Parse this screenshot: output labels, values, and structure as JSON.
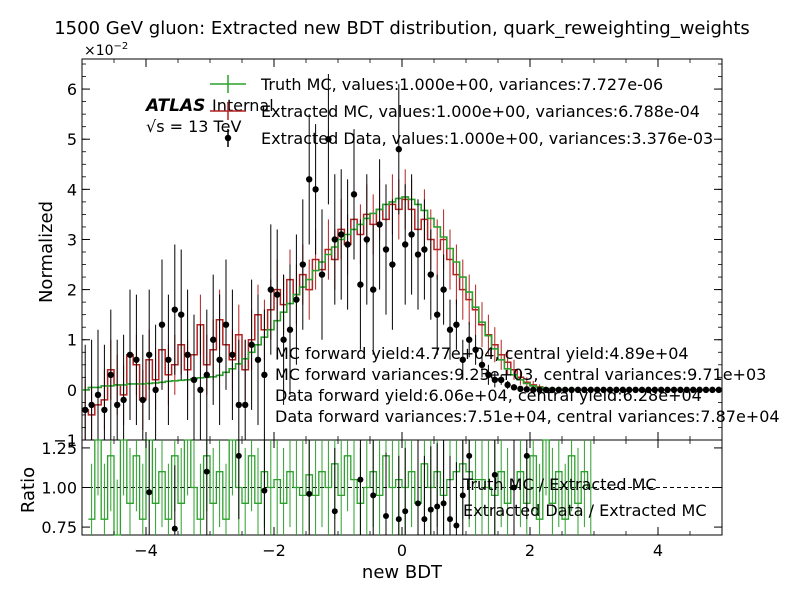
{
  "chart_data": {
    "type": "line",
    "title": "1500 GeV gluon: Extracted new BDT distribution, quark_reweighting_weights",
    "xlabel": "new BDT",
    "main_ylabel": "Normalized",
    "ratio_ylabel": "Ratio",
    "y_multiplier": "×10",
    "y_multiplier_exp": "−2",
    "xlim": [
      -5,
      5
    ],
    "main_ylim": [
      -1,
      6.6
    ],
    "ratio_ylim": [
      0.7,
      1.3
    ],
    "x_ticks": [
      -4,
      -2,
      0,
      2,
      4
    ],
    "x_tick_labels": [
      "−4",
      "−2",
      "0",
      "2",
      "4"
    ],
    "main_y_ticks": [
      -1,
      0,
      1,
      2,
      3,
      4,
      5,
      6
    ],
    "main_y_tick_labels": [
      "−1",
      "0",
      "1",
      "2",
      "3",
      "4",
      "5",
      "6"
    ],
    "ratio_y_ticks": [
      0.75,
      1.0,
      1.25
    ],
    "ratio_y_tick_labels": [
      "0.75",
      "1.00",
      "1.25"
    ],
    "atlas_label": "ATLAS",
    "internal_label": "Internal",
    "energy_label": "√s = 13 TeV",
    "legend_main": [
      "Truth MC, values:1.000e+00, variances:7.727e-06",
      "Extracted MC, values:1.000e+00, variances:6.788e-04",
      "Extracted Data, values:1.000e+00, variances:3.376e-03"
    ],
    "legend_ratio": [
      "Truth MC / Extracted MC",
      "Extracted Data / Extracted MC"
    ],
    "annotations": [
      "MC forward yield:4.77e+04, central yield:4.89e+04",
      "MC forward variances:9.23e+03, central variances:9.71e+03",
      "Data forward yield:6.06e+04, central yield:6.28e+04",
      "Data forward variances:7.51e+04, central variances:7.87e+04"
    ],
    "colors": {
      "truth": "#2ca02c",
      "extracted_mc": "#b22222",
      "data": "#000000"
    },
    "bin_edges": [
      -5.0,
      -4.9,
      -4.8,
      -4.7,
      -4.6,
      -4.5,
      -4.4,
      -4.3,
      -4.2,
      -4.1,
      -4.0,
      -3.9,
      -3.8,
      -3.7,
      -3.6,
      -3.5,
      -3.4,
      -3.3,
      -3.2,
      -3.1,
      -3.0,
      -2.9,
      -2.8,
      -2.7,
      -2.6,
      -2.5,
      -2.4,
      -2.3,
      -2.2,
      -2.1,
      -2.0,
      -1.9,
      -1.8,
      -1.7,
      -1.6,
      -1.5,
      -1.4,
      -1.3,
      -1.2,
      -1.1,
      -1.0,
      -0.9,
      -0.8,
      -0.7,
      -0.6,
      -0.5,
      -0.4,
      -0.3,
      -0.2,
      -0.1,
      0.0,
      0.1,
      0.2,
      0.3,
      0.4,
      0.5,
      0.6,
      0.7,
      0.8,
      0.9,
      1.0,
      1.1,
      1.2,
      1.3,
      1.4,
      1.5,
      1.6,
      1.7,
      1.8,
      1.9,
      2.0,
      2.1,
      2.2,
      2.3,
      2.4,
      2.5,
      2.6,
      2.7,
      2.8,
      2.9,
      3.0,
      3.1,
      3.2,
      3.3,
      3.4,
      3.5,
      3.6,
      3.7,
      3.8,
      3.9,
      4.0,
      4.1,
      4.2,
      4.3,
      4.4,
      4.5,
      4.6,
      4.7,
      4.8,
      4.9,
      5.0
    ],
    "series": [
      {
        "name": "Truth MC",
        "values": [
          0.0,
          0.05,
          0.05,
          0.08,
          0.08,
          0.1,
          0.1,
          0.12,
          0.12,
          0.12,
          0.13,
          0.14,
          0.15,
          0.17,
          0.18,
          0.19,
          0.2,
          0.22,
          0.24,
          0.25,
          0.26,
          0.29,
          0.35,
          0.42,
          0.52,
          0.62,
          0.75,
          0.9,
          1.05,
          1.2,
          1.38,
          1.55,
          1.72,
          1.9,
          2.05,
          2.2,
          2.38,
          2.55,
          2.7,
          2.85,
          3.0,
          3.1,
          3.2,
          3.3,
          3.42,
          3.52,
          3.6,
          3.7,
          3.75,
          3.82,
          3.85,
          3.8,
          3.7,
          3.58,
          3.42,
          3.25,
          3.05,
          2.82,
          2.55,
          2.25,
          1.95,
          1.65,
          1.35,
          1.08,
          0.82,
          0.6,
          0.42,
          0.3,
          0.2,
          0.13,
          0.08,
          0.05,
          0.03,
          0.02,
          0.01,
          0.01,
          0.005,
          0.003,
          0.002,
          0.0,
          0.0,
          0.0,
          0.0,
          0.0,
          0.0,
          0.0,
          0.0,
          0.0,
          0.0,
          0.0,
          0.0,
          0.0,
          0.0,
          0.0,
          0.0,
          0.0,
          0.0,
          0.0,
          0.0,
          0.0
        ]
      },
      {
        "name": "Extracted MC",
        "values": [
          -0.4,
          -0.5,
          -0.3,
          -0.2,
          0.4,
          0.1,
          -0.1,
          0.7,
          0.5,
          -0.2,
          0.6,
          0.2,
          0.8,
          0.3,
          0.5,
          0.9,
          0.4,
          0.7,
          1.3,
          0.5,
          0.8,
          1.4,
          0.9,
          0.6,
          1.1,
          0.4,
          1.0,
          1.5,
          1.2,
          1.6,
          2.0,
          1.7,
          2.2,
          1.9,
          2.3,
          2.0,
          2.6,
          2.4,
          2.8,
          2.6,
          3.2,
          2.9,
          3.4,
          3.1,
          3.5,
          3.3,
          3.6,
          3.4,
          3.7,
          3.6,
          3.8,
          3.6,
          3.2,
          3.4,
          3.0,
          2.8,
          3.0,
          2.6,
          2.3,
          2.0,
          1.8,
          1.6,
          1.3,
          1.1,
          0.9,
          0.7,
          0.55,
          0.4,
          0.25,
          0.15,
          0.1,
          0.06,
          0.02,
          0.01,
          0.0,
          0.0,
          0.0,
          0.0,
          0.0,
          0.0,
          0.0,
          0.0,
          0.0,
          0.0,
          0.0,
          0.0,
          0.0,
          0.0,
          0.0,
          0.0,
          0.0,
          0.0,
          0.0,
          0.0,
          0.0,
          0.0,
          0.0,
          0.0,
          0.0,
          0.0
        ],
        "errors": [
          0.6,
          0.6,
          0.6,
          0.6,
          0.6,
          0.6,
          0.6,
          0.6,
          0.6,
          0.6,
          0.6,
          0.6,
          0.6,
          0.6,
          0.6,
          0.6,
          0.6,
          0.6,
          0.6,
          0.6,
          0.6,
          0.6,
          0.6,
          0.6,
          0.6,
          0.6,
          0.6,
          0.6,
          0.6,
          0.6,
          0.6,
          0.6,
          0.6,
          0.6,
          0.6,
          0.6,
          0.6,
          0.6,
          0.6,
          0.6,
          0.6,
          0.6,
          0.6,
          0.6,
          0.6,
          0.6,
          0.6,
          0.6,
          0.6,
          0.6,
          0.6,
          0.6,
          0.6,
          0.6,
          0.6,
          0.6,
          0.6,
          0.6,
          0.6,
          0.6,
          0.5,
          0.5,
          0.45,
          0.4,
          0.35,
          0.3,
          0.25,
          0.2,
          0.15,
          0.1,
          0.08,
          0.05,
          0.03,
          0.02,
          0.01,
          0.0,
          0.0,
          0.0,
          0.0,
          0.0,
          0.0,
          0.0,
          0.0,
          0.0,
          0.0,
          0.0,
          0.0,
          0.0,
          0.0,
          0.0,
          0.0,
          0.0,
          0.0,
          0.0,
          0.0,
          0.0,
          0.0,
          0.0,
          0.0,
          0.0
        ]
      },
      {
        "name": "Extracted Data",
        "values": [
          -0.4,
          -0.3,
          -0.1,
          -0.4,
          0.3,
          -0.3,
          -0.2,
          0.7,
          0.6,
          -0.2,
          0.7,
          0.0,
          1.3,
          0.6,
          1.6,
          1.5,
          0.7,
          0.2,
          0.0,
          0.3,
          1.0,
          0.6,
          1.3,
          0.7,
          -0.3,
          -0.3,
          0.9,
          0.6,
          0.3,
          2.0,
          1.9,
          1.0,
          1.2,
          1.8,
          2.5,
          4.2,
          4.0,
          2.3,
          5.0,
          3.0,
          3.1,
          2.9,
          3.9,
          2.1,
          3.0,
          2.0,
          3.3,
          2.8,
          2.5,
          4.8,
          2.9,
          3.1,
          2.7,
          2.8,
          2.3,
          1.5,
          2.0,
          1.2,
          1.3,
          0.6,
          1.0,
          0.8,
          0.5,
          0.3,
          0.2,
          0.2,
          0.1,
          0.05,
          0.02,
          0.01,
          0.0,
          0.0,
          0.0,
          0.0,
          0.0,
          0.0,
          0.0,
          0.0,
          0.0,
          0.0,
          0.0,
          0.0,
          0.0,
          0.0,
          0.0,
          0.0,
          0.0,
          0.0,
          0.0,
          0.0,
          0.0,
          0.0,
          0.0,
          0.0,
          0.0,
          0.0,
          0.0,
          0.0,
          0.0,
          0.0
        ],
        "errors": [
          1.3,
          1.3,
          1.3,
          1.3,
          1.3,
          1.3,
          1.3,
          1.3,
          1.3,
          1.3,
          1.3,
          1.3,
          1.3,
          1.3,
          1.3,
          1.3,
          1.3,
          1.3,
          1.3,
          1.3,
          1.3,
          1.3,
          1.3,
          1.3,
          1.3,
          1.3,
          1.3,
          1.3,
          1.3,
          1.3,
          1.3,
          1.3,
          1.3,
          1.3,
          1.3,
          1.3,
          1.3,
          1.3,
          1.3,
          1.3,
          1.3,
          1.3,
          1.3,
          1.3,
          1.3,
          1.3,
          1.3,
          1.3,
          1.3,
          1.3,
          1.2,
          1.2,
          1.1,
          1.0,
          0.9,
          0.8,
          0.7,
          0.6,
          0.5,
          0.4,
          0.35,
          0.3,
          0.25,
          0.2,
          0.15,
          0.1,
          0.08,
          0.05,
          0.03,
          0.02,
          0.01,
          0.0,
          0.0,
          0.0,
          0.0,
          0.0,
          0.0,
          0.0,
          0.0,
          0.0,
          0.0,
          0.0,
          0.0,
          0.0,
          0.0,
          0.0,
          0.0,
          0.0,
          0.0,
          0.0,
          0.0,
          0.0,
          0.0,
          0.0,
          0.0,
          0.0,
          0.0,
          0.0,
          0.0,
          0.0
        ]
      }
    ],
    "ratio_series": [
      {
        "name": "Truth MC / Extracted MC",
        "values": [
          null,
          0.8,
          1.3,
          0.8,
          1.2,
          0.7,
          1.3,
          0.9,
          1.2,
          0.8,
          1.3,
          0.9,
          1.1,
          0.8,
          1.2,
          0.9,
          1.3,
          1.0,
          0.8,
          1.2,
          0.9,
          1.1,
          0.8,
          1.3,
          1.0,
          0.9,
          1.2,
          0.9,
          1.1,
          1.0,
          1.05,
          0.9,
          1.1,
          1.0,
          0.95,
          1.08,
          0.95,
          1.1,
          1.0,
          1.15,
          0.95,
          1.2,
          1.05,
          0.9,
          1.0,
          1.1,
          0.95,
          1.2,
          1.0,
          1.05,
          1.0,
          1.1,
          0.9,
          1.15,
          1.0,
          1.1,
          0.95,
          1.05,
          1.1,
          1.15,
          1.1,
          1.05,
          1.05,
          1.0,
          0.95,
          1.1,
          0.9,
          1.0,
          1.1,
          0.9,
          1.2,
          0.8,
          1.3,
          0.9,
          1.1,
          0.8,
          1.2,
          0.9,
          1.1,
          1.0,
          null,
          null,
          null,
          null,
          null,
          null,
          null,
          null,
          null,
          null,
          null,
          null,
          null,
          null,
          null,
          null,
          null,
          null,
          null,
          null
        ]
      },
      {
        "name": "Extracted Data / Extracted MC",
        "values": [
          null,
          null,
          null,
          null,
          null,
          null,
          null,
          null,
          null,
          null,
          0.97,
          null,
          null,
          null,
          0.74,
          null,
          null,
          null,
          null,
          1.1,
          null,
          null,
          null,
          null,
          1.2,
          null,
          null,
          null,
          0.98,
          null,
          null,
          null,
          null,
          null,
          null,
          0.96,
          null,
          null,
          null,
          0.85,
          null,
          null,
          null,
          1.05,
          null,
          0.95,
          null,
          0.82,
          null,
          0.8,
          0.85,
          null,
          0.9,
          0.8,
          0.86,
          0.88,
          0.9,
          0.8,
          0.76,
          0.95,
          1.2,
          null,
          null,
          null,
          1.08,
          null,
          null,
          1.0,
          null,
          1.2,
          null,
          null,
          null,
          null,
          null,
          null,
          null,
          null,
          null,
          null,
          null,
          null,
          null,
          null,
          null,
          null,
          null,
          null,
          null,
          null,
          null,
          null,
          null,
          null,
          null,
          null,
          null,
          null,
          null,
          null
        ]
      }
    ]
  }
}
